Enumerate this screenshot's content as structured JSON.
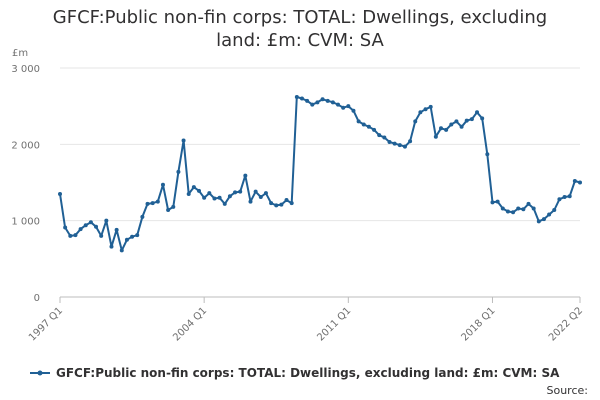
{
  "chart_data": {
    "type": "line",
    "title_line1": "GFCF:Public non-fin corps: TOTAL: Dwellings, excluding",
    "title_line2": "land: £m: CVM: SA",
    "ylabel": "£m",
    "ylim": [
      0,
      3000
    ],
    "yticks": [
      "0",
      "1 000",
      "2 000",
      "3 000"
    ],
    "ytick_values": [
      0,
      1000,
      2000,
      3000
    ],
    "xticks": [
      "1997 Q1",
      "2004 Q1",
      "2011 Q1",
      "2018 Q1",
      "2022 Q2"
    ],
    "xtick_index": [
      0,
      28,
      56,
      84,
      101
    ],
    "grid": true,
    "legend_position": "bottom",
    "series": [
      {
        "name": "GFCF:Public non-fin corps: TOTAL: Dwellings, excluding land: £m: CVM: SA",
        "color": "#206095",
        "x_start": "1997 Q1",
        "values": [
          1350,
          910,
          800,
          810,
          890,
          940,
          980,
          920,
          800,
          1000,
          660,
          880,
          610,
          750,
          790,
          810,
          1050,
          1220,
          1230,
          1250,
          1470,
          1140,
          1180,
          1640,
          2050,
          1350,
          1440,
          1390,
          1300,
          1360,
          1290,
          1300,
          1220,
          1320,
          1370,
          1380,
          1590,
          1250,
          1380,
          1310,
          1360,
          1230,
          1200,
          1210,
          1270,
          1230,
          2620,
          2600,
          2570,
          2520,
          2550,
          2590,
          2570,
          2550,
          2520,
          2480,
          2500,
          2440,
          2300,
          2260,
          2230,
          2190,
          2120,
          2090,
          2030,
          2010,
          1990,
          1970,
          2040,
          2300,
          2420,
          2460,
          2490,
          2100,
          2210,
          2190,
          2260,
          2300,
          2230,
          2310,
          2330,
          2420,
          2340,
          1870,
          1240,
          1250,
          1160,
          1120,
          1110,
          1160,
          1150,
          1220,
          1160,
          990,
          1020,
          1080,
          1140,
          1280,
          1310,
          1320,
          1520,
          1500
        ]
      }
    ],
    "source_label": "Source:"
  }
}
